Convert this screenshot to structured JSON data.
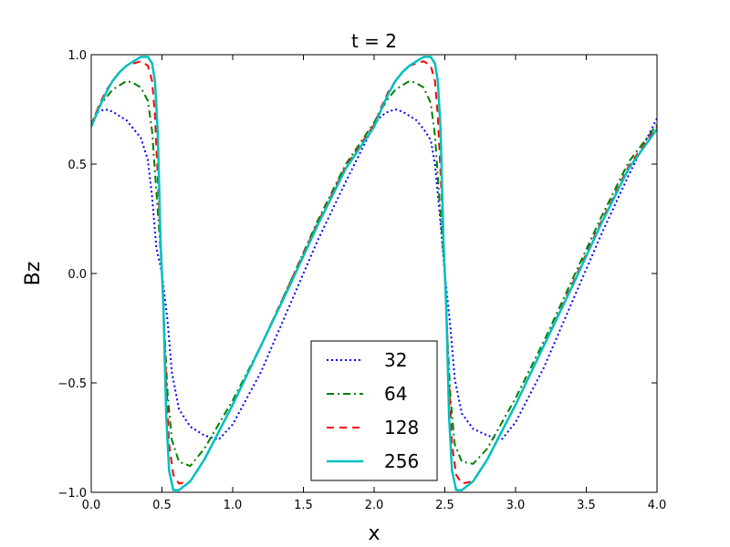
{
  "chart_data": {
    "type": "line",
    "title": "t = 2",
    "xlabel": "x",
    "ylabel": "Bz",
    "xlim": [
      0.0,
      4.0
    ],
    "ylim": [
      -1.0,
      1.0
    ],
    "x_ticks": [
      "0.0",
      "0.5",
      "1.0",
      "1.5",
      "2.0",
      "2.5",
      "3.0",
      "3.5",
      "4.0"
    ],
    "y_ticks": [
      "−1.0",
      "−0.5",
      "0.0",
      "0.5",
      "1.0"
    ],
    "grid": false,
    "legend_position": "lower-center",
    "series": [
      {
        "name": "32",
        "color": "#0000ff",
        "style": "dotted",
        "x": [
          0.0,
          0.05,
          0.1,
          0.15,
          0.2,
          0.25,
          0.3,
          0.35,
          0.4,
          0.43,
          0.46,
          0.5,
          0.54,
          0.57,
          0.62,
          0.7,
          0.8,
          0.9,
          1.0,
          1.2,
          1.4,
          1.6,
          1.8,
          2.0,
          2.05,
          2.1,
          2.15,
          2.2,
          2.25,
          2.3,
          2.35,
          2.4,
          2.43,
          2.46,
          2.5,
          2.54,
          2.57,
          2.62,
          2.7,
          2.8,
          2.9,
          3.0,
          3.2,
          3.4,
          3.6,
          3.8,
          4.0
        ],
        "y": [
          0.68,
          0.74,
          0.75,
          0.74,
          0.72,
          0.7,
          0.66,
          0.62,
          0.52,
          0.35,
          0.12,
          0.0,
          -0.22,
          -0.45,
          -0.62,
          -0.7,
          -0.74,
          -0.76,
          -0.69,
          -0.45,
          -0.15,
          0.15,
          0.42,
          0.68,
          0.72,
          0.74,
          0.75,
          0.74,
          0.72,
          0.7,
          0.66,
          0.61,
          0.5,
          0.3,
          0.0,
          -0.25,
          -0.48,
          -0.64,
          -0.71,
          -0.74,
          -0.76,
          -0.68,
          -0.43,
          -0.13,
          0.17,
          0.45,
          0.71
        ]
      },
      {
        "name": "64",
        "color": "#008000",
        "style": "dashdot",
        "x": [
          0.0,
          0.05,
          0.1,
          0.15,
          0.2,
          0.25,
          0.3,
          0.35,
          0.4,
          0.43,
          0.46,
          0.48,
          0.5,
          0.52,
          0.54,
          0.57,
          0.62,
          0.7,
          0.8,
          1.0,
          1.2,
          1.4,
          1.6,
          1.8,
          2.0,
          2.05,
          2.1,
          2.15,
          2.2,
          2.25,
          2.3,
          2.35,
          2.4,
          2.43,
          2.46,
          2.48,
          2.5,
          2.52,
          2.54,
          2.57,
          2.62,
          2.7,
          2.8,
          3.0,
          3.2,
          3.4,
          3.6,
          3.8,
          4.0
        ],
        "y": [
          0.68,
          0.76,
          0.8,
          0.84,
          0.86,
          0.88,
          0.87,
          0.85,
          0.79,
          0.65,
          0.38,
          0.2,
          0.0,
          -0.3,
          -0.55,
          -0.76,
          -0.86,
          -0.88,
          -0.8,
          -0.58,
          -0.33,
          -0.05,
          0.24,
          0.5,
          0.69,
          0.75,
          0.8,
          0.84,
          0.86,
          0.88,
          0.87,
          0.85,
          0.78,
          0.63,
          0.35,
          0.18,
          0.0,
          -0.32,
          -0.57,
          -0.78,
          -0.86,
          -0.87,
          -0.8,
          -0.57,
          -0.31,
          -0.03,
          0.25,
          0.51,
          0.68
        ]
      },
      {
        "name": "128",
        "color": "#ff0000",
        "style": "dashed",
        "x": [
          0.0,
          0.05,
          0.1,
          0.15,
          0.2,
          0.25,
          0.3,
          0.35,
          0.4,
          0.43,
          0.45,
          0.47,
          0.49,
          0.5,
          0.51,
          0.53,
          0.55,
          0.58,
          0.62,
          0.7,
          0.8,
          1.0,
          1.2,
          1.4,
          1.6,
          1.8,
          2.0,
          2.05,
          2.1,
          2.15,
          2.2,
          2.25,
          2.3,
          2.35,
          2.4,
          2.43,
          2.45,
          2.47,
          2.49,
          2.5,
          2.51,
          2.53,
          2.55,
          2.58,
          2.62,
          2.7,
          2.8,
          3.0,
          3.2,
          3.4,
          3.6,
          3.8,
          4.0
        ],
        "y": [
          0.68,
          0.76,
          0.83,
          0.88,
          0.92,
          0.95,
          0.96,
          0.97,
          0.95,
          0.88,
          0.72,
          0.45,
          0.15,
          0.0,
          -0.15,
          -0.5,
          -0.78,
          -0.92,
          -0.96,
          -0.95,
          -0.85,
          -0.6,
          -0.33,
          -0.05,
          0.23,
          0.49,
          0.68,
          0.76,
          0.83,
          0.88,
          0.92,
          0.95,
          0.96,
          0.97,
          0.95,
          0.88,
          0.72,
          0.45,
          0.15,
          0.0,
          -0.15,
          -0.5,
          -0.78,
          -0.92,
          -0.96,
          -0.95,
          -0.85,
          -0.6,
          -0.33,
          -0.05,
          0.23,
          0.49,
          0.67
        ]
      },
      {
        "name": "256",
        "color": "#00bfbf",
        "style": "solid",
        "x": [
          0.0,
          0.05,
          0.1,
          0.15,
          0.2,
          0.25,
          0.3,
          0.35,
          0.4,
          0.43,
          0.45,
          0.47,
          0.48,
          0.49,
          0.5,
          0.51,
          0.52,
          0.53,
          0.55,
          0.58,
          0.62,
          0.7,
          0.8,
          1.0,
          1.2,
          1.4,
          1.6,
          1.8,
          2.0,
          2.05,
          2.1,
          2.15,
          2.2,
          2.25,
          2.3,
          2.35,
          2.4,
          2.43,
          2.45,
          2.47,
          2.48,
          2.49,
          2.5,
          2.51,
          2.52,
          2.53,
          2.55,
          2.58,
          2.62,
          2.7,
          2.8,
          3.0,
          3.2,
          3.4,
          3.6,
          3.8,
          4.0
        ],
        "y": [
          0.67,
          0.75,
          0.82,
          0.88,
          0.92,
          0.95,
          0.97,
          0.99,
          0.99,
          0.96,
          0.88,
          0.65,
          0.4,
          0.15,
          0.0,
          -0.15,
          -0.4,
          -0.65,
          -0.9,
          -0.99,
          -0.99,
          -0.95,
          -0.85,
          -0.6,
          -0.33,
          -0.06,
          0.22,
          0.48,
          0.67,
          0.75,
          0.82,
          0.88,
          0.92,
          0.95,
          0.97,
          0.99,
          0.99,
          0.96,
          0.88,
          0.65,
          0.4,
          0.15,
          0.0,
          -0.15,
          -0.4,
          -0.65,
          -0.9,
          -0.99,
          -0.99,
          -0.95,
          -0.85,
          -0.6,
          -0.33,
          -0.06,
          0.22,
          0.48,
          0.66
        ]
      }
    ]
  }
}
